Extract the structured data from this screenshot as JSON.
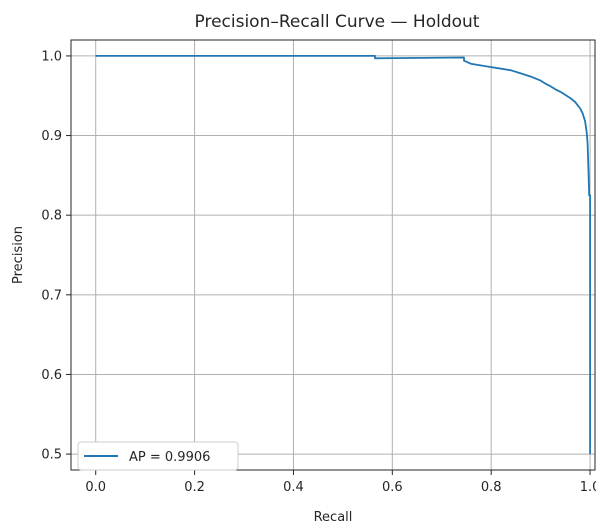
{
  "chart_data": {
    "type": "line",
    "title": "Precision–Recall Curve — Holdout",
    "xlabel": "Recall",
    "ylabel": "Precision",
    "xlim": [
      -0.05,
      1.01
    ],
    "ylim": [
      0.48,
      1.02
    ],
    "xticks": [
      "0.0",
      "0.2",
      "0.4",
      "0.6",
      "0.8",
      "1.0"
    ],
    "yticks": [
      "0.5",
      "0.6",
      "0.7",
      "0.8",
      "0.9",
      "1.0"
    ],
    "grid": true,
    "legend": {
      "position": "lower-left"
    },
    "colors": {
      "series": "#1f77b4",
      "grid": "#b0b0b0",
      "axes": "#262626"
    },
    "series": [
      {
        "name": "AP = 0.9906",
        "x": [
          0.0,
          0.565,
          0.565,
          0.745,
          0.745,
          0.76,
          0.78,
          0.8,
          0.82,
          0.84,
          0.86,
          0.88,
          0.9,
          0.91,
          0.92,
          0.93,
          0.94,
          0.95,
          0.96,
          0.97,
          0.975,
          0.98,
          0.985,
          0.99,
          0.993,
          0.995,
          0.996,
          0.997,
          0.998,
          0.998,
          1.0,
          1.0
        ],
        "y": [
          1.0,
          1.0,
          0.997,
          0.998,
          0.994,
          0.99,
          0.988,
          0.986,
          0.984,
          0.982,
          0.978,
          0.974,
          0.969,
          0.965,
          0.962,
          0.958,
          0.955,
          0.951,
          0.947,
          0.942,
          0.938,
          0.934,
          0.928,
          0.918,
          0.905,
          0.89,
          0.87,
          0.85,
          0.83,
          0.825,
          0.825,
          0.5
        ]
      }
    ]
  }
}
